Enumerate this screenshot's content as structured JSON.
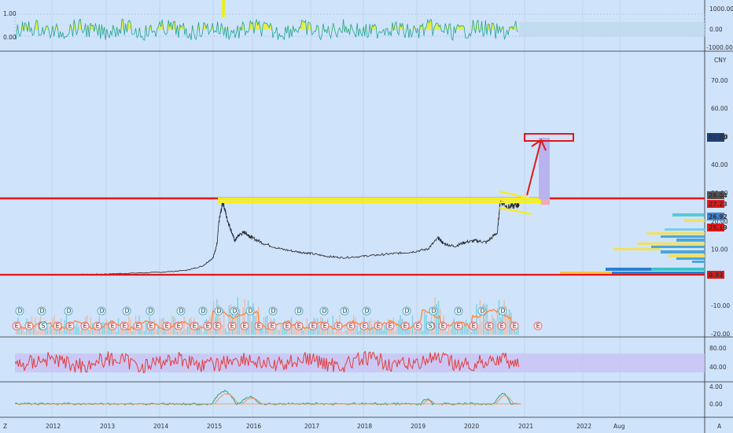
{
  "currency_label": "CNY",
  "colors": {
    "background": "#cfe3fb",
    "grid": "#b7cbe6",
    "price_line": "#222222",
    "support_resistance": "#e01818",
    "channel": "#f5ee1c",
    "target_box": "#b9b3ee",
    "rsi_line": "#e43c3c",
    "rsi_band": "#c8c0f4",
    "osc_line": "#1fa58f",
    "osc_fill": "#e9ee2a",
    "volume_orange": "#ff8a3d",
    "volume_teal": "#3cc3c9"
  },
  "chart_data": [
    {
      "type": "area",
      "panel": "top_oscillator",
      "ylabels": [
        "1.00",
        "0.00"
      ],
      "ylabels_right": [
        "1000.00",
        "0.00",
        "-1000.00"
      ]
    },
    {
      "type": "line",
      "panel": "price",
      "x_labels": [
        "2012",
        "2013",
        "2014",
        "2015",
        "2016",
        "2017",
        "2018",
        "2019",
        "2020",
        "2021",
        "2022",
        "Aug"
      ],
      "y_ticks": [
        "70.00",
        "60.00",
        "50.00",
        "40.00",
        "30.00",
        "20.00",
        "10.00",
        "-10.00",
        "-20.00"
      ],
      "ylim": [
        -22,
        78
      ],
      "series": [
        {
          "values": [
            [
              2011.7,
              1
            ],
            [
              2012.5,
              1
            ],
            [
              2013,
              1.2
            ],
            [
              2013.5,
              1.5
            ],
            [
              2014,
              1.8
            ],
            [
              2014.5,
              2.5
            ],
            [
              2014.8,
              4
            ],
            [
              2015,
              7
            ],
            [
              2015.1,
              12
            ],
            [
              2015.15,
              20
            ],
            [
              2015.25,
              27
            ],
            [
              2015.35,
              21
            ],
            [
              2015.45,
              17
            ],
            [
              2015.55,
              13
            ],
            [
              2015.65,
              15
            ],
            [
              2015.8,
              16
            ],
            [
              2015.9,
              15
            ],
            [
              2016,
              14
            ],
            [
              2016.2,
              12
            ],
            [
              2016.5,
              10
            ],
            [
              2016.8,
              9
            ],
            [
              2017,
              8.5
            ],
            [
              2017.3,
              7.5
            ],
            [
              2017.6,
              7
            ],
            [
              2018,
              7.5
            ],
            [
              2018.3,
              8
            ],
            [
              2018.6,
              8.5
            ],
            [
              2018.9,
              9
            ],
            [
              2019.2,
              10
            ],
            [
              2019.4,
              14
            ],
            [
              2019.5,
              12
            ],
            [
              2019.7,
              11
            ],
            [
              2019.9,
              12.5
            ],
            [
              2020.1,
              13
            ],
            [
              2020.3,
              12.5
            ],
            [
              2020.5,
              16
            ],
            [
              2020.55,
              27
            ],
            [
              2020.7,
              25
            ],
            [
              2020.85,
              25.5
            ],
            [
              2020.9,
              26
            ]
          ]
        }
      ],
      "annotations": {
        "levels": [
          "47.80",
          "28.04",
          "27.23",
          "26.92",
          "25.19",
          "0.93"
        ],
        "earnings_marker": "E",
        "dividend_marker": "D",
        "split_marker": "S"
      }
    },
    {
      "type": "line",
      "panel": "rsi",
      "y_ticks": [
        "80.00",
        "40.00"
      ]
    },
    {
      "type": "line",
      "panel": "bottom_oscillator",
      "y_ticks": [
        "4.00",
        "0.00"
      ]
    }
  ],
  "footer": {
    "left_label": "Z",
    "right_label": "A"
  }
}
